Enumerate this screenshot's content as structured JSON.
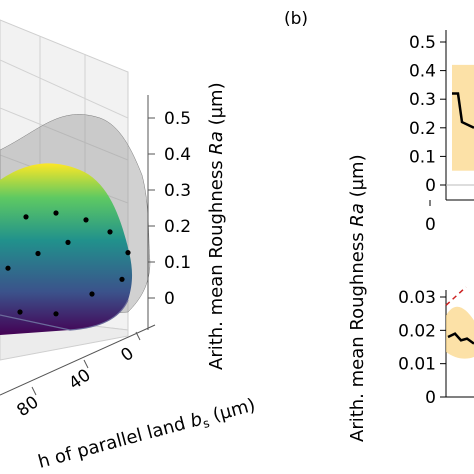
{
  "panel_a": {
    "surface_colors": [
      "#440154",
      "#3b528b",
      "#21918c",
      "#5ec962",
      "#fde725"
    ],
    "chart_data": {
      "type": "scatter",
      "title": "",
      "zlabel_prefix": "Arith. mean Roughness ",
      "zlabel_symbol": "Ra",
      "zlabel_unit": " (µm)",
      "xlabel_prefix": "h of parallel land ",
      "xlabel_symbol": "b",
      "xlabel_subscript": "s",
      "xlabel_unit": " (µm)",
      "z_ticks": [
        "0",
        "0.1",
        "0.2",
        "0.3",
        "0.4",
        "0.5"
      ],
      "zlim": [
        0,
        0.55
      ],
      "x_ticks": [
        "0",
        "40",
        "80"
      ],
      "points": [
        {
          "b_s": 120,
          "Ra": 0.3
        },
        {
          "b_s": 95,
          "Ra": 0.31
        },
        {
          "b_s": 70,
          "Ra": 0.3
        },
        {
          "b_s": 45,
          "Ra": 0.26
        },
        {
          "b_s": 25,
          "Ra": 0.21
        },
        {
          "b_s": 110,
          "Ra": 0.18
        },
        {
          "b_s": 85,
          "Ra": 0.2
        },
        {
          "b_s": 60,
          "Ra": 0.21
        },
        {
          "b_s": 10,
          "Ra": 0.14
        },
        {
          "b_s": 100,
          "Ra": 0.05
        },
        {
          "b_s": 70,
          "Ra": 0.02
        },
        {
          "b_s": 40,
          "Ra": 0.05
        },
        {
          "b_s": 15,
          "Ra": 0.07
        }
      ]
    }
  },
  "panel_b": {
    "label": "(b)",
    "ylabel_prefix": "Arith. mean Roughness ",
    "ylabel_symbol": "Ra",
    "ylabel_unit": " (µm)",
    "band_color": "#fbd78a",
    "trend_color": "#cc2222",
    "top": {
      "chart_data": {
        "type": "line",
        "y_ticks": [
          "0",
          "0.1",
          "0.2",
          "0.3",
          "0.4",
          "0.5"
        ],
        "ylim": [
          0,
          0.55
        ],
        "x_ticks": [
          "0"
        ],
        "line_values": [
          0.32,
          0.32,
          0.22,
          0.2
        ]
      }
    },
    "bottom": {
      "chart_data": {
        "type": "line",
        "y_ticks": [
          "0",
          "0.01",
          "0.02",
          "0.03"
        ],
        "ylim": [
          0,
          0.03
        ],
        "line_values": [
          0.018,
          0.019,
          0.017,
          0.0175,
          0.016
        ]
      }
    }
  }
}
